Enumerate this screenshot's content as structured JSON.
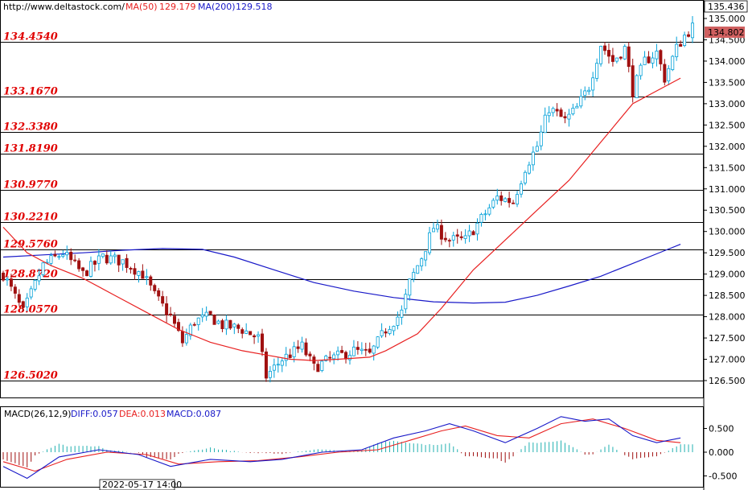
{
  "header": {
    "url": "http://www.deltastock.com/",
    "ma50_label": "MA(50)",
    "ma50_value": "129.179",
    "ma200_label": "MA(200)",
    "ma200_value": "129.518"
  },
  "macd_header": {
    "title": "MACD(26,12,9)",
    "diff": "DIFF:0.057",
    "dea": "DEA:0.013",
    "macd": "MACD:0.087"
  },
  "price_axis": {
    "top_label": "135.436",
    "current_price": "134.802",
    "ticks": [
      "135.000",
      "134.500",
      "134.000",
      "133.500",
      "133.000",
      "132.500",
      "132.000",
      "131.500",
      "131.000",
      "130.500",
      "130.000",
      "129.500",
      "129.000",
      "128.500",
      "128.000",
      "127.500",
      "127.000",
      "126.500"
    ]
  },
  "macd_axis": {
    "ticks": [
      "0.500",
      "0.000",
      "-0.500"
    ]
  },
  "date_label": "2022-05-17 14:00",
  "colors": {
    "bull": "#00a0d8",
    "bear": "#a01010",
    "ma50": "#e82020",
    "ma200": "#1818c8",
    "level_text": "#e00000",
    "macd_hist": "#20b0b0",
    "macd_hist_neg": "#a01010"
  },
  "chart_data": {
    "type": "candlestick",
    "price_range": [
      126.2,
      135.436
    ],
    "levels": [
      "134.4540",
      "133.1670",
      "132.3380",
      "131.8190",
      "130.9770",
      "130.2210",
      "129.5760",
      "128.8720",
      "128.0570",
      "126.5020"
    ],
    "close_path": [
      [
        0,
        129.0
      ],
      [
        5,
        128.1
      ],
      [
        10,
        129.2
      ],
      [
        15,
        129.5
      ],
      [
        20,
        129.0
      ],
      [
        25,
        129.4
      ],
      [
        30,
        129.3
      ],
      [
        35,
        129.0
      ],
      [
        38,
        128.5
      ],
      [
        42,
        128.0
      ],
      [
        45,
        127.4
      ],
      [
        48,
        127.9
      ],
      [
        52,
        128.0
      ],
      [
        55,
        127.8
      ],
      [
        60,
        127.7
      ],
      [
        64,
        127.5
      ],
      [
        66,
        126.6
      ],
      [
        70,
        127.0
      ],
      [
        75,
        127.3
      ],
      [
        78,
        126.8
      ],
      [
        82,
        127.0
      ],
      [
        88,
        127.2
      ],
      [
        92,
        127.1
      ],
      [
        96,
        127.7
      ],
      [
        100,
        128.1
      ],
      [
        102,
        128.8
      ],
      [
        105,
        129.4
      ],
      [
        108,
        130.1
      ],
      [
        112,
        129.8
      ],
      [
        116,
        129.8
      ],
      [
        120,
        130.3
      ],
      [
        124,
        130.8
      ],
      [
        128,
        130.7
      ],
      [
        131,
        131.5
      ],
      [
        134,
        132.0
      ],
      [
        137,
        132.9
      ],
      [
        141,
        132.6
      ],
      [
        144,
        132.9
      ],
      [
        147,
        133.4
      ],
      [
        150,
        134.4
      ],
      [
        153,
        134.0
      ],
      [
        156,
        134.3
      ],
      [
        158,
        133.3
      ],
      [
        161,
        134.0
      ],
      [
        164,
        134.2
      ],
      [
        166,
        133.6
      ],
      [
        169,
        134.3
      ],
      [
        171,
        134.6
      ],
      [
        173,
        134.8
      ]
    ],
    "ma50_path": [
      [
        0,
        130.1
      ],
      [
        6,
        129.5
      ],
      [
        12,
        129.2
      ],
      [
        20,
        128.9
      ],
      [
        28,
        128.5
      ],
      [
        36,
        128.1
      ],
      [
        44,
        127.7
      ],
      [
        52,
        127.4
      ],
      [
        60,
        127.2
      ],
      [
        66,
        127.1
      ],
      [
        72,
        127.0
      ],
      [
        78,
        126.97
      ],
      [
        84,
        127.0
      ],
      [
        92,
        127.05
      ],
      [
        96,
        127.2
      ],
      [
        104,
        127.6
      ],
      [
        110,
        128.2
      ],
      [
        118,
        129.1
      ],
      [
        126,
        129.8
      ],
      [
        134,
        130.5
      ],
      [
        142,
        131.2
      ],
      [
        150,
        132.1
      ],
      [
        158,
        133.0
      ],
      [
        164,
        133.3
      ],
      [
        170,
        133.6
      ]
    ],
    "ma200_path": [
      [
        0,
        129.4
      ],
      [
        10,
        129.45
      ],
      [
        20,
        129.5
      ],
      [
        30,
        129.56
      ],
      [
        40,
        129.6
      ],
      [
        50,
        129.58
      ],
      [
        58,
        129.4
      ],
      [
        68,
        129.1
      ],
      [
        78,
        128.8
      ],
      [
        88,
        128.6
      ],
      [
        98,
        128.45
      ],
      [
        108,
        128.35
      ],
      [
        118,
        128.32
      ],
      [
        126,
        128.34
      ],
      [
        134,
        128.5
      ],
      [
        142,
        128.72
      ],
      [
        150,
        128.95
      ],
      [
        158,
        129.25
      ],
      [
        166,
        129.55
      ],
      [
        170,
        129.7
      ]
    ],
    "macd_range": [
      -0.55,
      0.8
    ],
    "macd_diff_path": [
      [
        0,
        -0.3
      ],
      [
        6,
        -0.55
      ],
      [
        14,
        -0.1
      ],
      [
        24,
        0.05
      ],
      [
        34,
        -0.05
      ],
      [
        42,
        -0.3
      ],
      [
        52,
        -0.15
      ],
      [
        62,
        -0.2
      ],
      [
        70,
        -0.15
      ],
      [
        80,
        0.0
      ],
      [
        90,
        0.05
      ],
      [
        98,
        0.3
      ],
      [
        106,
        0.45
      ],
      [
        112,
        0.6
      ],
      [
        118,
        0.45
      ],
      [
        126,
        0.2
      ],
      [
        134,
        0.5
      ],
      [
        140,
        0.75
      ],
      [
        146,
        0.65
      ],
      [
        152,
        0.7
      ],
      [
        158,
        0.35
      ],
      [
        164,
        0.2
      ],
      [
        170,
        0.3
      ]
    ],
    "macd_dea_path": [
      [
        0,
        -0.2
      ],
      [
        8,
        -0.4
      ],
      [
        16,
        -0.15
      ],
      [
        26,
        0.0
      ],
      [
        36,
        -0.05
      ],
      [
        44,
        -0.25
      ],
      [
        54,
        -0.2
      ],
      [
        64,
        -0.18
      ],
      [
        74,
        -0.1
      ],
      [
        84,
        0.0
      ],
      [
        94,
        0.05
      ],
      [
        102,
        0.25
      ],
      [
        110,
        0.45
      ],
      [
        116,
        0.55
      ],
      [
        124,
        0.35
      ],
      [
        132,
        0.3
      ],
      [
        140,
        0.6
      ],
      [
        148,
        0.7
      ],
      [
        156,
        0.5
      ],
      [
        164,
        0.25
      ],
      [
        170,
        0.2
      ]
    ]
  }
}
